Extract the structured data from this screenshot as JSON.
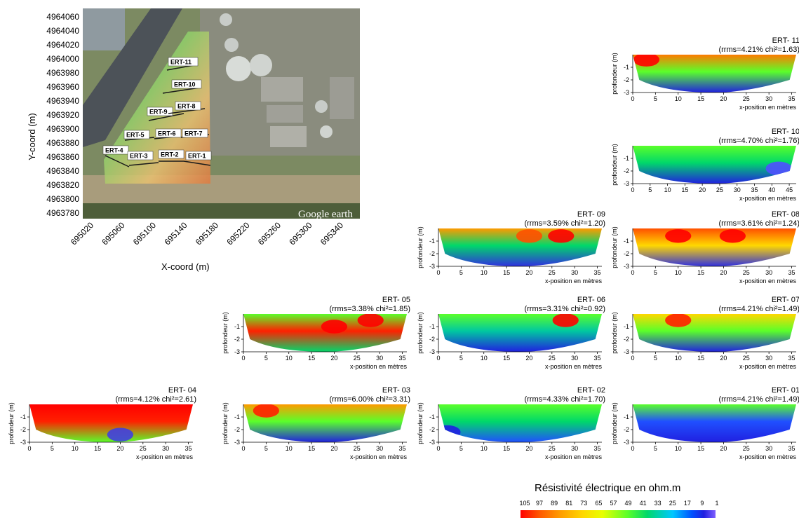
{
  "map": {
    "y_axis_label": "Y-coord (m)",
    "x_axis_label": "X-coord (m)",
    "y_ticks": [
      "4964060",
      "4964040",
      "4964020",
      "4964000",
      "4963980",
      "4963960",
      "4963940",
      "4963920",
      "4963900",
      "4963880",
      "4963860",
      "4963840",
      "4963820",
      "4963800",
      "4963780"
    ],
    "x_ticks": [
      "695020",
      "695060",
      "695100",
      "695140",
      "695180",
      "695220",
      "695260",
      "695300",
      "695340"
    ],
    "watermark": "Google earth",
    "line_labels": [
      "ERT-11",
      "ERT-10",
      "ERT-9",
      "ERT-8",
      "ERT-5",
      "ERT-6",
      "ERT-7",
      "ERT-4",
      "ERT-3",
      "ERT-2",
      "ERT-1"
    ]
  },
  "legend": {
    "title": "Résistivité électrique en ohm.m",
    "ticks": [
      "105",
      "97",
      "89",
      "81",
      "73",
      "65",
      "57",
      "49",
      "41",
      "33",
      "25",
      "17",
      "9",
      "1"
    ],
    "colors": [
      "#ff0000",
      "#ff9a00",
      "#ffd800",
      "#5aff2a",
      "#00c8ff",
      "#0050ff",
      "#8060ff"
    ]
  },
  "chart_data": [
    {
      "type": "heatmap",
      "title": "ERT- 11",
      "subtitle": "(rrms=4.21% chi²=1.63)",
      "xlabel": "x-position en mètres",
      "ylabel": "profondeur (m)",
      "x_ticks": [
        "0",
        "5",
        "10",
        "15",
        "20",
        "25",
        "30",
        "35"
      ],
      "y_ticks": [
        "-1",
        "-2",
        "-3"
      ],
      "xlim": [
        0,
        36
      ],
      "ylim": [
        -3,
        0
      ]
    },
    {
      "type": "heatmap",
      "title": "ERT- 10",
      "subtitle": "(rrms=4.70% chi²=1.76)",
      "xlabel": "x-position en mètres",
      "ylabel": "profondeur (m)",
      "x_ticks": [
        "0",
        "5",
        "10",
        "15",
        "20",
        "25",
        "30",
        "35",
        "40",
        "45"
      ],
      "y_ticks": [
        "-1",
        "-2",
        "-3"
      ],
      "xlim": [
        0,
        47
      ],
      "ylim": [
        -3,
        0
      ]
    },
    {
      "type": "heatmap",
      "title": "ERT- 09",
      "subtitle": "(rrms=3.59% chi²=1.20)",
      "xlabel": "x-position en mètres",
      "ylabel": "profondeur (m)",
      "x_ticks": [
        "0",
        "5",
        "10",
        "15",
        "20",
        "25",
        "30",
        "35"
      ],
      "y_ticks": [
        "-1",
        "-2",
        "-3"
      ],
      "xlim": [
        0,
        36
      ],
      "ylim": [
        -3,
        0
      ]
    },
    {
      "type": "heatmap",
      "title": "ERT- 08",
      "subtitle": "(rrms=3.61% chi²=1.24)",
      "xlabel": "x-position en mètres",
      "ylabel": "profondeur (m)",
      "x_ticks": [
        "0",
        "5",
        "10",
        "15",
        "20",
        "25",
        "30",
        "35"
      ],
      "y_ticks": [
        "-1",
        "-2",
        "-3"
      ],
      "xlim": [
        0,
        36
      ],
      "ylim": [
        -3,
        0
      ]
    },
    {
      "type": "heatmap",
      "title": "ERT- 05",
      "subtitle": "(rrms=3.38% chi²=1.85)",
      "xlabel": "x-position en mètres",
      "ylabel": "profondeur (m)",
      "x_ticks": [
        "0",
        "5",
        "10",
        "15",
        "20",
        "25",
        "30",
        "35"
      ],
      "y_ticks": [
        "-1",
        "-2",
        "-3"
      ],
      "xlim": [
        0,
        36
      ],
      "ylim": [
        -3,
        0
      ]
    },
    {
      "type": "heatmap",
      "title": "ERT- 06",
      "subtitle": "(rrms=3.31% chi²=0.92)",
      "xlabel": "x-position en mètres",
      "ylabel": "profondeur (m)",
      "x_ticks": [
        "0",
        "5",
        "10",
        "15",
        "20",
        "25",
        "30",
        "35"
      ],
      "y_ticks": [
        "-1",
        "-2",
        "-3"
      ],
      "xlim": [
        0,
        36
      ],
      "ylim": [
        -3,
        0
      ]
    },
    {
      "type": "heatmap",
      "title": "ERT- 07",
      "subtitle": "(rrms=4.21% chi²=1.49)",
      "xlabel": "x-position en mètres",
      "ylabel": "profondeur (m)",
      "x_ticks": [
        "0",
        "5",
        "10",
        "15",
        "20",
        "25",
        "30",
        "35"
      ],
      "y_ticks": [
        "-1",
        "-2",
        "-3"
      ],
      "xlim": [
        0,
        36
      ],
      "ylim": [
        -3,
        0
      ]
    },
    {
      "type": "heatmap",
      "title": "ERT- 04",
      "subtitle": "(rrms=4.12% chi²=2.61)",
      "xlabel": "x-position en mètres",
      "ylabel": "profondeur (m)",
      "x_ticks": [
        "0",
        "5",
        "10",
        "15",
        "20",
        "25",
        "30",
        "35"
      ],
      "y_ticks": [
        "-1",
        "-2",
        "-3"
      ],
      "xlim": [
        0,
        36
      ],
      "ylim": [
        -3,
        0
      ]
    },
    {
      "type": "heatmap",
      "title": "ERT- 03",
      "subtitle": "(rrms=6.00% chi²=3.31)",
      "xlabel": "x-position en mètres",
      "ylabel": "profondeur (m)",
      "x_ticks": [
        "0",
        "5",
        "10",
        "15",
        "20",
        "25",
        "30",
        "35"
      ],
      "y_ticks": [
        "-1",
        "-2",
        "-3"
      ],
      "xlim": [
        0,
        36
      ],
      "ylim": [
        -3,
        0
      ]
    },
    {
      "type": "heatmap",
      "title": "ERT- 02",
      "subtitle": "(rrms=4.33% chi²=1.70)",
      "xlabel": "x-position en mètres",
      "ylabel": "profondeur (m)",
      "x_ticks": [
        "0",
        "5",
        "10",
        "15",
        "20",
        "25",
        "30",
        "35"
      ],
      "y_ticks": [
        "-1",
        "-2",
        "-3"
      ],
      "xlim": [
        0,
        36
      ],
      "ylim": [
        -3,
        0
      ]
    },
    {
      "type": "heatmap",
      "title": "ERT- 01",
      "subtitle": "(rrms=4.21% chi²=1.49)",
      "xlabel": "x-position en mètres",
      "ylabel": "profondeur (m)",
      "x_ticks": [
        "0",
        "5",
        "10",
        "15",
        "20",
        "25",
        "30",
        "35"
      ],
      "y_ticks": [
        "-1",
        "-2",
        "-3"
      ],
      "xlim": [
        0,
        36
      ],
      "ylim": [
        -3,
        0
      ]
    }
  ]
}
